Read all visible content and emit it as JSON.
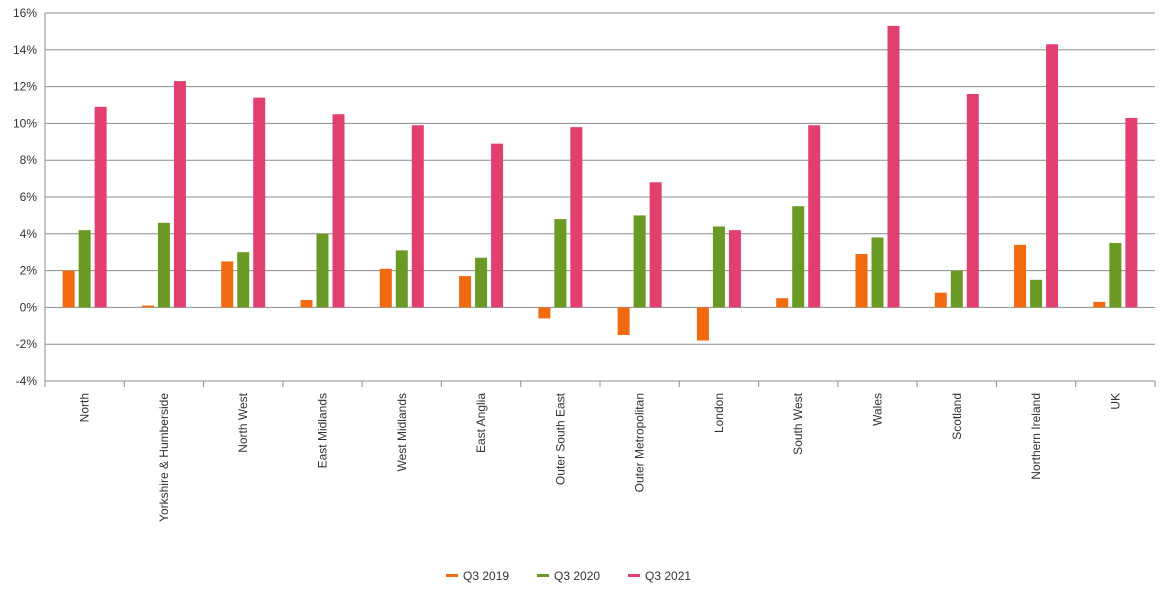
{
  "chart_data": {
    "type": "bar",
    "title": "",
    "xlabel": "",
    "ylabel": "",
    "ylim": [
      -4,
      16
    ],
    "yticks": [
      -4,
      -2,
      0,
      2,
      4,
      6,
      8,
      10,
      12,
      14,
      16
    ],
    "ytick_labels": [
      "-4%",
      "-2%",
      "0%",
      "2%",
      "4%",
      "6%",
      "8%",
      "10%",
      "12%",
      "14%",
      "16%"
    ],
    "grid": true,
    "legend_position": "bottom-center",
    "categories": [
      "North",
      "Yorkshire & Humberside",
      "North West",
      "East Midlands",
      "West Midlands",
      "East Anglia",
      "Outer South East",
      "Outer Metropolitan",
      "London",
      "South West",
      "Wales",
      "Scotland",
      "Northern Ireland",
      "UK"
    ],
    "series": [
      {
        "name": "Q3 2019",
        "color": "#f26a0f",
        "values": [
          2.0,
          0.1,
          2.5,
          0.4,
          2.1,
          1.7,
          -0.6,
          -1.5,
          -1.8,
          0.5,
          2.9,
          0.8,
          3.4,
          0.3
        ]
      },
      {
        "name": "Q3 2020",
        "color": "#6a9a23",
        "values": [
          4.2,
          4.6,
          3.0,
          4.0,
          3.1,
          2.7,
          4.8,
          5.0,
          4.4,
          5.5,
          3.8,
          2.0,
          1.5,
          3.5
        ]
      },
      {
        "name": "Q3 2021",
        "color": "#e23f71",
        "values": [
          10.9,
          12.3,
          11.4,
          10.5,
          9.9,
          8.9,
          9.8,
          6.8,
          4.2,
          9.9,
          15.3,
          11.6,
          14.3,
          10.3
        ]
      }
    ]
  }
}
